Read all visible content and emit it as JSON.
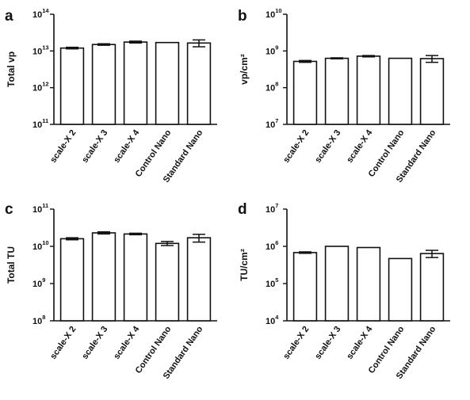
{
  "chart_data": [
    {
      "panel": "a",
      "type": "bar",
      "ylabel": "Total vp",
      "yscale": "log",
      "ylim": [
        100000000000.0,
        100000000000000.0
      ],
      "yticks": [
        {
          "base": "10",
          "exp": "11"
        },
        {
          "base": "10",
          "exp": "12"
        },
        {
          "base": "10",
          "exp": "13"
        },
        {
          "base": "10",
          "exp": "14"
        }
      ],
      "categories": [
        "scale-X 2",
        "scale-X 3",
        "scale-X 4",
        "Control Nano",
        "Standard Nano"
      ],
      "values": [
        12000000000000.0,
        15000000000000.0,
        17500000000000.0,
        17000000000000.0,
        16500000000000.0
      ],
      "errors": [
        600000000000.0,
        700000000000.0,
        1000000000000.0,
        0,
        3500000000000.0
      ],
      "grid": false
    },
    {
      "panel": "b",
      "type": "bar",
      "ylabel": "vp/cm²",
      "yscale": "log",
      "ylim": [
        10000000.0,
        10000000000.0
      ],
      "yticks": [
        {
          "base": "10",
          "exp": "7"
        },
        {
          "base": "10",
          "exp": "8"
        },
        {
          "base": "10",
          "exp": "9"
        },
        {
          "base": "10",
          "exp": "10"
        }
      ],
      "categories": [
        "scale-X 2",
        "scale-X 3",
        "scale-X 4",
        "Control Nano",
        "Standard Nano"
      ],
      "values": [
        520000000.0,
        630000000.0,
        720000000.0,
        630000000.0,
        620000000.0
      ],
      "errors": [
        30000000.0,
        20000000.0,
        30000000.0,
        0,
        130000000.0
      ],
      "grid": false
    },
    {
      "panel": "c",
      "type": "bar",
      "ylabel": "Total TU",
      "yscale": "log",
      "ylim": [
        100000000.0,
        100000000000.0
      ],
      "yticks": [
        {
          "base": "10",
          "exp": "8"
        },
        {
          "base": "10",
          "exp": "9"
        },
        {
          "base": "10",
          "exp": "10"
        },
        {
          "base": "10",
          "exp": "11"
        }
      ],
      "categories": [
        "scale-X 2",
        "scale-X 3",
        "scale-X 4",
        "Control Nano",
        "Standard Nano"
      ],
      "values": [
        16000000000.0,
        23000000000.0,
        21500000000.0,
        12000000000.0,
        17000000000.0
      ],
      "errors": [
        1000000000.0,
        1500000000.0,
        1000000000.0,
        1500000000.0,
        4000000000.0
      ],
      "grid": false
    },
    {
      "panel": "d",
      "type": "bar",
      "ylabel": "TU/cm²",
      "yscale": "log",
      "ylim": [
        10000.0,
        10000000.0
      ],
      "yticks": [
        {
          "base": "10",
          "exp": "4"
        },
        {
          "base": "10",
          "exp": "5"
        },
        {
          "base": "10",
          "exp": "6"
        },
        {
          "base": "10",
          "exp": "7"
        }
      ],
      "categories": [
        "scale-X 2",
        "scale-X 3",
        "scale-X 4",
        "Control Nano",
        "Standard Nano"
      ],
      "values": [
        680000.0,
        1000000.0,
        930000.0,
        470000.0,
        640000.0
      ],
      "errors": [
        30000.0,
        0,
        0,
        0,
        140000.0
      ],
      "grid": false
    }
  ]
}
